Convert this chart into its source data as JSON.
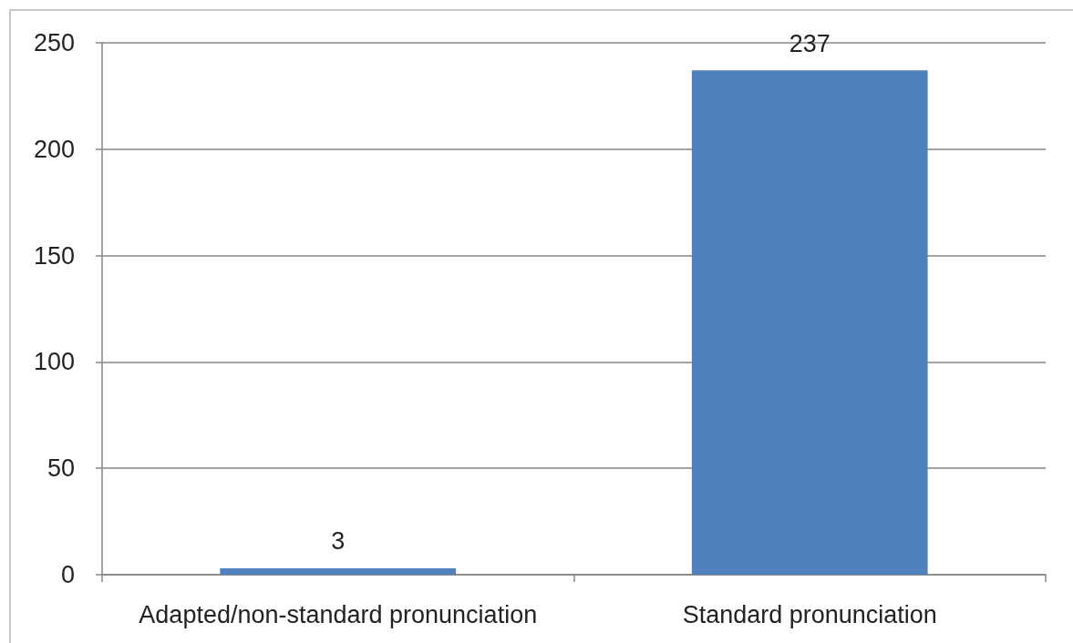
{
  "chart_data": {
    "type": "bar",
    "categories": [
      "Adapted/non-standard pronunciation",
      "Standard pronunciation"
    ],
    "values": [
      3,
      237
    ],
    "color": "#4f81bd",
    "ylim": [
      0,
      250
    ],
    "yticks": [
      0,
      50,
      100,
      150,
      200,
      250
    ],
    "grid": "y",
    "data_labels": true
  }
}
